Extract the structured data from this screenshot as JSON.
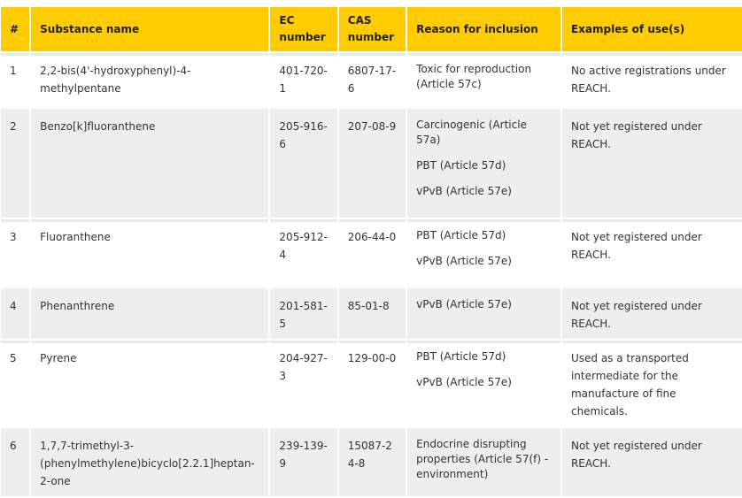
{
  "header": {
    "num": "#",
    "name": "Substance name",
    "ec": "EC number",
    "cas": "CAS number",
    "reason": "Reason for inclusion",
    "uses": "Examples of use(s)"
  },
  "rows": [
    {
      "num": "1",
      "name": "2,2-bis(4'-hydroxyphenyl)-4-methylpentane",
      "ec": "401-720-1",
      "cas": "6807-17-6",
      "reasons": [
        "Toxic for reproduction (Article 57c)"
      ],
      "uses": "No active registrations under REACH."
    },
    {
      "num": "2",
      "name": "Benzo[k]fluoranthene",
      "ec": "205-916-6",
      "cas": "207-08-9",
      "reasons": [
        "Carcinogenic (Article 57a)",
        "PBT (Article 57d)",
        "vPvB (Article 57e)"
      ],
      "uses": "Not yet registered under REACH."
    },
    {
      "num": "3",
      "name": "Fluoranthene",
      "ec": "205-912-4",
      "cas": "206-44-0",
      "reasons": [
        "PBT (Article 57d)",
        "vPvB (Article 57e)"
      ],
      "uses": "Not yet registered under REACH."
    },
    {
      "num": "4",
      "name": "Phenanthrene",
      "ec": "201-581-5",
      "cas": "85-01-8",
      "reasons": [
        "vPvB (Article 57e)"
      ],
      "uses": "Not yet registered under REACH."
    },
    {
      "num": "5",
      "name": "Pyrene",
      "ec": "204-927-3",
      "cas": "129-00-0",
      "reasons": [
        "PBT (Article 57d)",
        "vPvB (Article 57e)"
      ],
      "uses": "Used as a transported intermediate for the manufacture of fine chemicals."
    },
    {
      "num": "6",
      "name": "1,7,7-trimethyl-3-(phenylmethylene)bicyclo[2.2.1]heptan-2-one",
      "ec": "239-139-9",
      "cas": "15087-24-8",
      "reasons": [
        "Endocrine disrupting properties (Article 57(f) - environment)"
      ],
      "uses": "Not yet registered under REACH."
    }
  ]
}
